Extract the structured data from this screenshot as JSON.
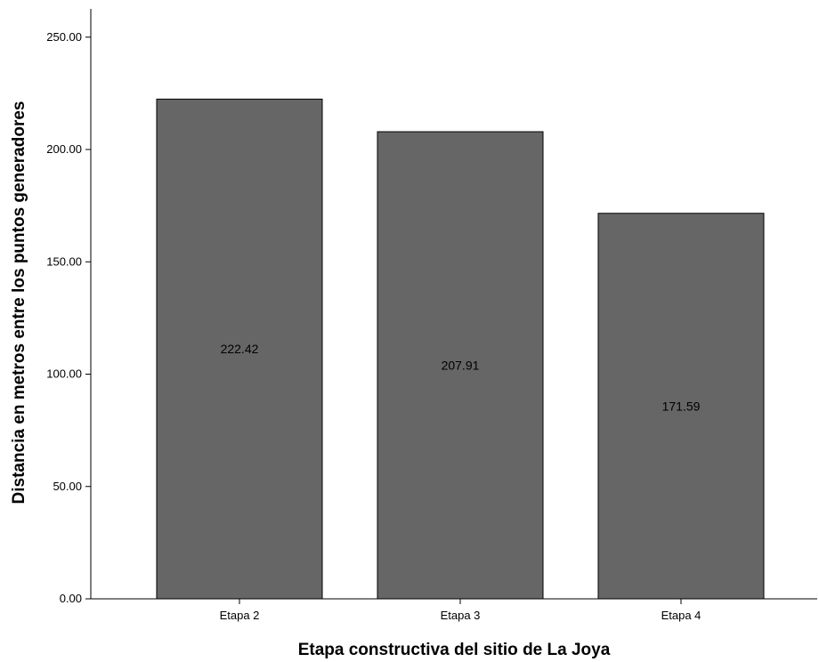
{
  "chart_data": {
    "type": "bar",
    "title": "",
    "xlabel": "Etapa constructiva del sitio de La Joya",
    "ylabel": "Distancia en metros entre los puntos generadores",
    "categories": [
      "Etapa 2",
      "Etapa 3",
      "Etapa 4"
    ],
    "values": [
      222.42,
      207.91,
      171.59
    ],
    "data_labels": [
      "222.42",
      "207.91",
      "171.59"
    ],
    "y_ticks": [
      "0.00",
      "50.00",
      "100.00",
      "150.00",
      "200.00",
      "250.00"
    ],
    "ylim": [
      0,
      262
    ],
    "bar_color": "#666666",
    "grid": false,
    "legend": "none"
  }
}
